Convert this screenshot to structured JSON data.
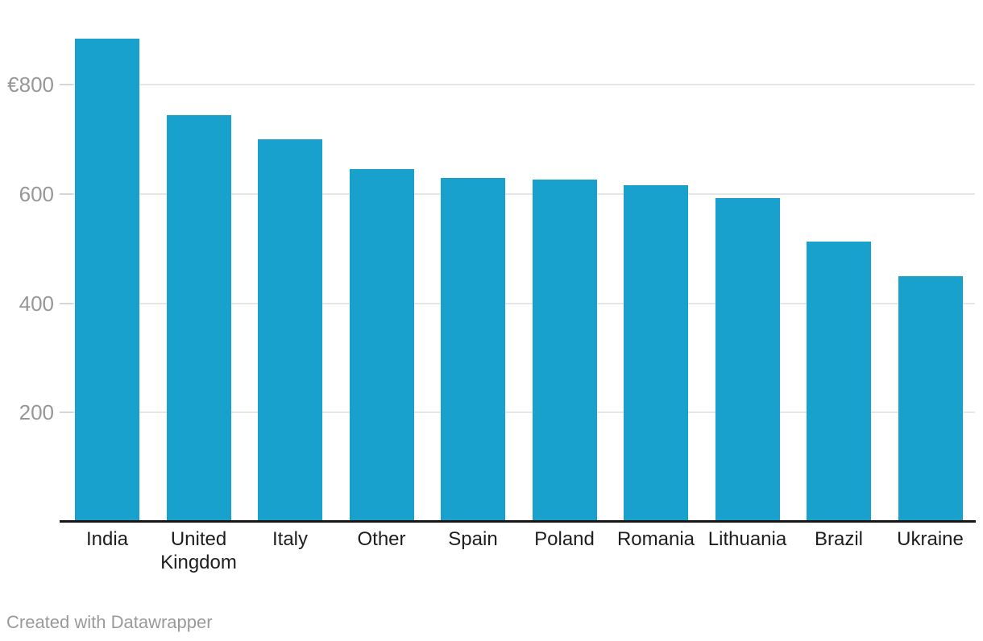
{
  "credit": {
    "label": "Created with Datawrapper"
  },
  "colors": {
    "background": "#ffffff",
    "bar": "#18a1cc",
    "gridline": "#e6e6e6",
    "tick_dash": "#d6d6d6",
    "axis_line": "#161616",
    "tick_label": "#979797",
    "category_label": "#1e1e1e",
    "credit_text": "#9a9a9a"
  },
  "chart_data": {
    "type": "bar",
    "title": "",
    "xlabel": "",
    "ylabel": "",
    "categories": [
      "India",
      "United Kingdom",
      "Italy",
      "Other",
      "Spain",
      "Poland",
      "Romania",
      "Lithuania",
      "Brazil",
      "Ukraine"
    ],
    "values": [
      885,
      745,
      700,
      646,
      630,
      627,
      616,
      592,
      513,
      450
    ],
    "unit_prefix": "€",
    "ylim": [
      0,
      955
    ],
    "y_ticks": [
      {
        "value": 800,
        "label": "€800"
      },
      {
        "value": 600,
        "label": "600"
      },
      {
        "value": 400,
        "label": "400"
      },
      {
        "value": 200,
        "label": "200"
      }
    ],
    "grid": "horizontal",
    "legend": "none",
    "footer": "Created with Datawrapper"
  }
}
